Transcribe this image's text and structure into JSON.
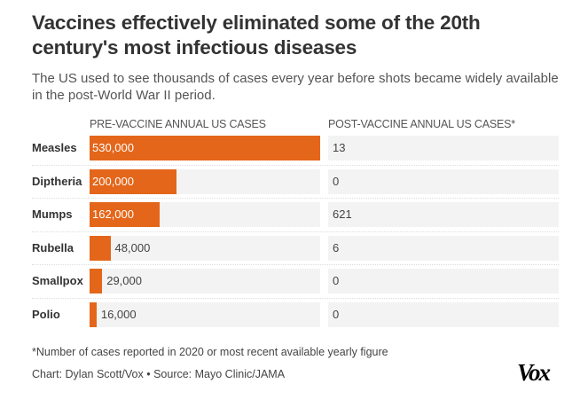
{
  "title": "Vaccines effectively eliminated some of the 20th century's most infectious diseases",
  "subtitle": "The US used to see thousands of cases every year before shots became widely available in the post-World War II period.",
  "chart_data": {
    "type": "bar",
    "categories": [
      "Measles",
      "Diptheria",
      "Mumps",
      "Rubella",
      "Smallpox",
      "Polio"
    ],
    "series": [
      {
        "name": "PRE-VACCINE ANNUAL US CASES",
        "values": [
          530000,
          200000,
          162000,
          48000,
          29000,
          16000
        ],
        "labels": [
          "530,000",
          "200,000",
          "162,000",
          "48,000",
          "29,000",
          "16,000"
        ],
        "color": "#e4661a"
      },
      {
        "name": "POST-VACCINE ANNUAL US CASES*",
        "values": [
          13,
          0,
          621,
          6,
          0,
          0
        ],
        "labels": [
          "13",
          "0",
          "621",
          "6",
          "0",
          "0"
        ]
      }
    ],
    "xlim": [
      0,
      530000
    ]
  },
  "footnote": "*Number of cases reported in 2020 or most recent available yearly figure",
  "credit": "Chart: Dylan Scott/Vox • Source: Mayo Clinic/JAMA",
  "logo": "Vox"
}
